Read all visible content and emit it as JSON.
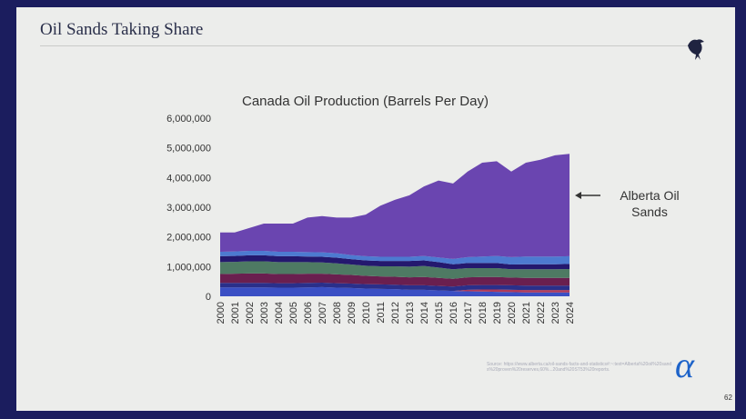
{
  "slide": {
    "title": "Oil Sands Taking Share",
    "source": "Source: https://www.alberta.ca/oil-sands-facts-and-statistics#:~:text=Alberta%20oil%20sands%20proven%20reserves,60%...20and%20ST53%20reports.",
    "page_number": "62",
    "logo_text": "α"
  },
  "chart_data": {
    "type": "area",
    "stacked": true,
    "title": "Canada Oil Production (Barrels Per Day)",
    "xlabel": "",
    "ylabel": "",
    "categories": [
      "2000",
      "2001",
      "2002",
      "2003",
      "2004",
      "2005",
      "2006",
      "2007",
      "2008",
      "2009",
      "2010",
      "2011",
      "2012",
      "2013",
      "2014",
      "2015",
      "2016",
      "2017",
      "2018",
      "2019",
      "2020",
      "2021",
      "2022",
      "2023",
      "2024"
    ],
    "ylim": [
      0,
      6000000
    ],
    "yticks": [
      "0",
      "1,000,000",
      "2,000,000",
      "3,000,000",
      "4,000,000",
      "5,000,000",
      "6,000,000"
    ],
    "grid": false,
    "legend": "none",
    "annotation": "Alberta Oil Sands",
    "series": [
      {
        "color": "#3a4fc4",
        "values": [
          300000,
          300000,
          300000,
          300000,
          290000,
          290000,
          300000,
          310000,
          290000,
          280000,
          260000,
          250000,
          240000,
          220000,
          220000,
          200000,
          180000,
          170000,
          160000,
          150000,
          140000,
          130000,
          130000,
          130000,
          130000
        ]
      },
      {
        "color": "#b03a5a",
        "values": [
          0,
          0,
          0,
          0,
          0,
          0,
          0,
          0,
          0,
          0,
          0,
          0,
          0,
          0,
          0,
          0,
          0,
          50000,
          70000,
          80000,
          80000,
          80000,
          80000,
          80000,
          80000
        ]
      },
      {
        "color": "#2a2f8a",
        "values": [
          150000,
          150000,
          150000,
          150000,
          150000,
          150000,
          150000,
          150000,
          150000,
          150000,
          150000,
          150000,
          150000,
          150000,
          150000,
          150000,
          150000,
          150000,
          150000,
          150000,
          150000,
          150000,
          150000,
          150000,
          150000
        ]
      },
      {
        "color": "#6a1f4f",
        "values": [
          300000,
          310000,
          320000,
          320000,
          310000,
          310000,
          310000,
          300000,
          300000,
          290000,
          280000,
          270000,
          270000,
          270000,
          280000,
          270000,
          260000,
          270000,
          270000,
          270000,
          260000,
          260000,
          260000,
          260000,
          260000
        ]
      },
      {
        "color": "#4e7a63",
        "values": [
          400000,
          400000,
          410000,
          410000,
          400000,
          400000,
          390000,
          380000,
          370000,
          350000,
          340000,
          340000,
          350000,
          360000,
          370000,
          350000,
          320000,
          310000,
          300000,
          300000,
          280000,
          290000,
          290000,
          290000,
          300000
        ]
      },
      {
        "color": "#24186e",
        "values": [
          200000,
          200000,
          200000,
          200000,
          200000,
          200000,
          190000,
          190000,
          190000,
          180000,
          180000,
          180000,
          180000,
          190000,
          190000,
          180000,
          170000,
          170000,
          170000,
          170000,
          160000,
          170000,
          170000,
          170000,
          170000
        ]
      },
      {
        "color": "#4d7ad0",
        "values": [
          150000,
          150000,
          150000,
          150000,
          150000,
          150000,
          150000,
          150000,
          150000,
          140000,
          140000,
          140000,
          140000,
          140000,
          150000,
          160000,
          180000,
          200000,
          220000,
          240000,
          250000,
          260000,
          260000,
          260000,
          260000
        ]
      },
      {
        "name": "Alberta Oil Sands",
        "color": "#6a45b0",
        "values": [
          650000,
          640000,
          770000,
          920000,
          950000,
          950000,
          1160000,
          1220000,
          1200000,
          1260000,
          1400000,
          1720000,
          1920000,
          2070000,
          2340000,
          2590000,
          2540000,
          2880000,
          3160000,
          3190000,
          2880000,
          3160000,
          3260000,
          3410000,
          3450000
        ]
      }
    ]
  }
}
